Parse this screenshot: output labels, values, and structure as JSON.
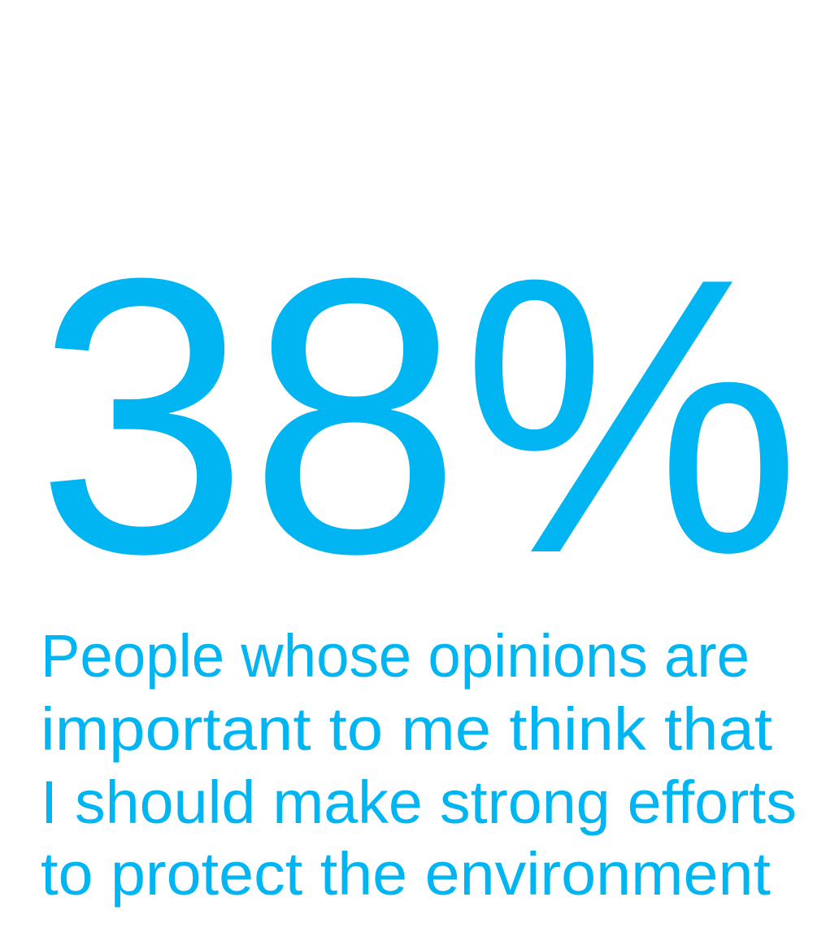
{
  "stat": {
    "value": "38%",
    "caption": {
      "lines": [
        "People whose opinions are",
        "important to me think that",
        "I should make strong efforts",
        "to protect the environment"
      ]
    }
  }
}
